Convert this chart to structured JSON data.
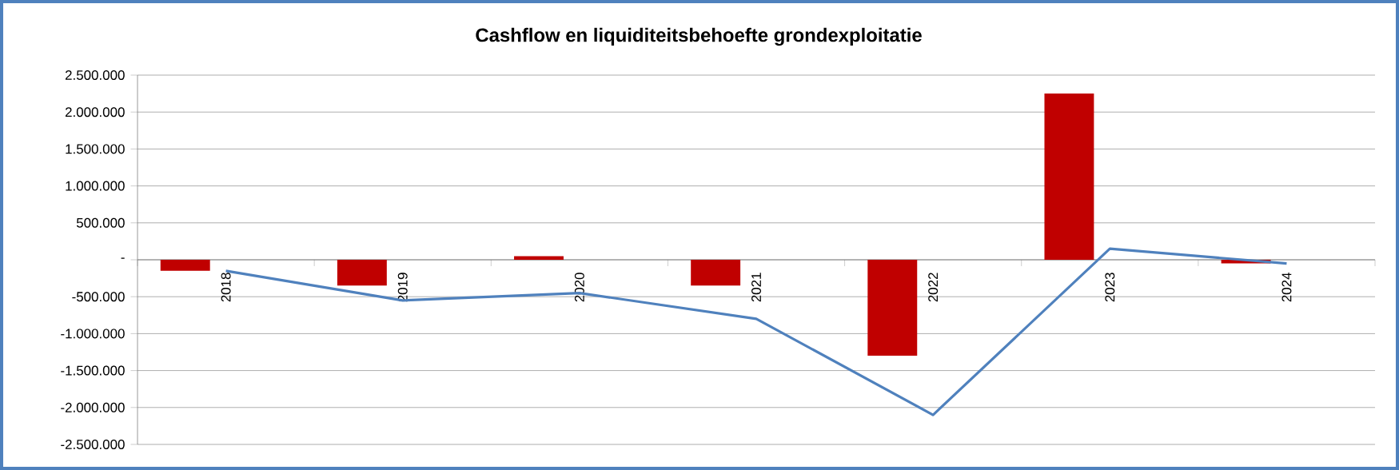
{
  "chart_data": {
    "type": "bar",
    "title": "Cashflow en liquiditeitsbehoefte grondexploitatie",
    "categories": [
      "2018",
      "2019",
      "2020",
      "2021",
      "2022",
      "2023",
      "2024"
    ],
    "series": [
      {
        "color": "#c00000",
        "values": [
          -150000,
          -350000,
          50000,
          -350000,
          -1300000,
          2250000,
          -50000
        ]
      },
      {
        "type": "line",
        "color": "#4f81bd",
        "marker": "none",
        "values": [
          -150000,
          -550000,
          -450000,
          -800000,
          -2100000,
          150000,
          -50000
        ]
      }
    ],
    "ylim": [
      -2500000,
      2500000
    ],
    "yticks": [
      {
        "value": 2500000,
        "label": "2.500.000"
      },
      {
        "value": 2000000,
        "label": "2.000.000"
      },
      {
        "value": 1500000,
        "label": "1.500.000"
      },
      {
        "value": 1000000,
        "label": "1.000.000"
      },
      {
        "value": 500000,
        "label": "500.000"
      },
      {
        "value": 0,
        "label": "-"
      },
      {
        "value": -500000,
        "label": "-500.000"
      },
      {
        "value": -1000000,
        "label": "-1.000.000"
      },
      {
        "value": -1500000,
        "label": "-1.500.000"
      },
      {
        "value": -2000000,
        "label": "-2.000.000"
      },
      {
        "value": -2500000,
        "label": "-2.500.000"
      }
    ],
    "grid": "y"
  }
}
